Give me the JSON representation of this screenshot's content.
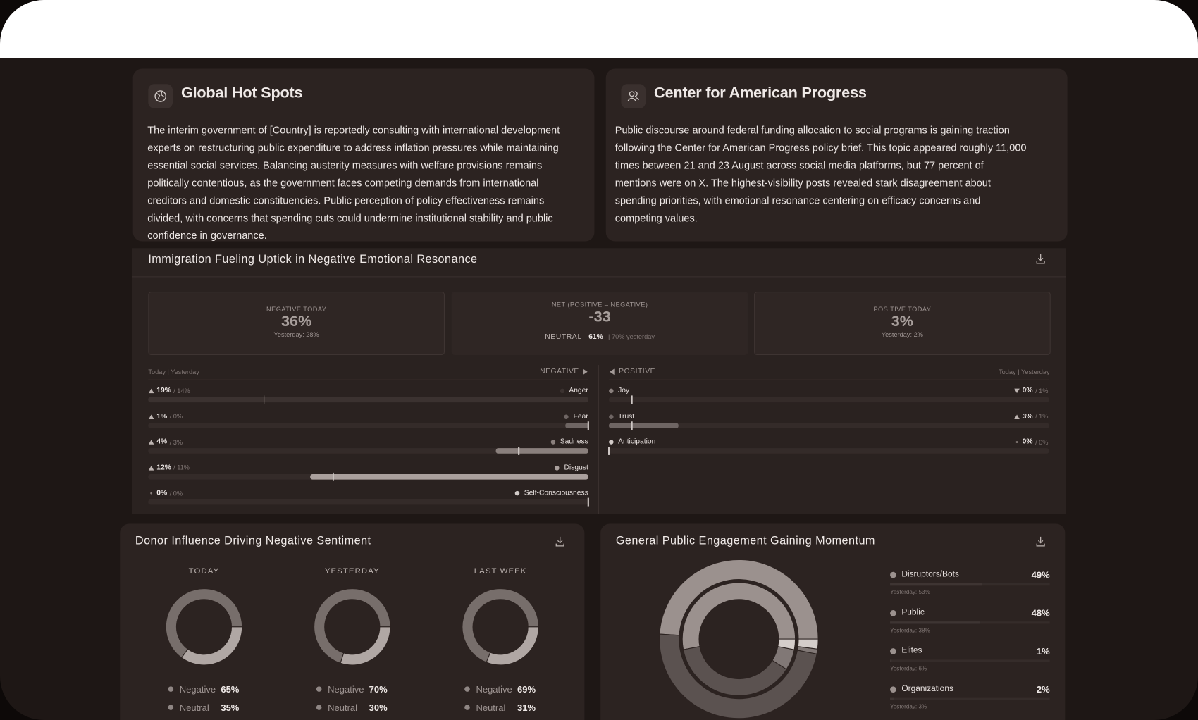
{
  "hot_spots": {
    "title": "Global Hot Spots",
    "body": "The interim government of [Country] is reportedly consulting with international development experts on restructuring public expenditure to address inflation pressures while maintaining essential social services. Balancing austerity measures with welfare provisions remains politically contentious, as the government faces competing demands from international creditors and domestic constituencies. Public perception of policy effectiveness remains divided, with concerns that spending cuts could undermine institutional stability and public confidence in governance."
  },
  "cap": {
    "title": "Center for American Progress",
    "body": "Public discourse around federal funding allocation to social programs is gaining traction following the Center for American Progress policy brief. This topic appeared roughly 11,000 times between 21 and 23 August across social media platforms, but 77 percent of mentions were on X. The highest-visibility posts revealed stark disagreement about spending priorities, with emotional resonance centering on efficacy concerns and competing values."
  },
  "emotion": {
    "title": "Immigration Fueling Uptick in Negative Emotional Resonance",
    "negative_today": {
      "label": "NEGATIVE TODAY",
      "value": "36%",
      "yesterday": "Yesterday: 28%"
    },
    "net": {
      "label": "NET (POSITIVE – NEGATIVE)",
      "value": "-33",
      "neutral_label": "NEUTRAL",
      "neutral_value": "61%",
      "neutral_yesterday": "| 70% yesterday"
    },
    "positive_today": {
      "label": "POSITIVE TODAY",
      "value": "3%",
      "yesterday": "Yesterday: 2%"
    },
    "negative_header": {
      "left": "Today | Yesterday",
      "right": "NEGATIVE"
    },
    "positive_header": {
      "left": "POSITIVE",
      "right": "Today | Yesterday"
    },
    "negative_rows": [
      {
        "name": "Anger",
        "today": 19,
        "today_label": "19%",
        "yesterday": 14,
        "yesterday_label": "/ 14%",
        "color": "#3b3230"
      },
      {
        "name": "Fear",
        "today": 1,
        "today_label": "1%",
        "yesterday": 0,
        "yesterday_label": "/ 0%",
        "color": "#6e6563"
      },
      {
        "name": "Sadness",
        "today": 4,
        "today_label": "4%",
        "yesterday": 3,
        "yesterday_label": "/ 3%",
        "color": "#8a807d"
      },
      {
        "name": "Disgust",
        "today": 12,
        "today_label": "12%",
        "yesterday": 11,
        "yesterday_label": "/ 11%",
        "color": "#aaa09d"
      },
      {
        "name": "Self-Consciousness",
        "today": 0,
        "today_label": "0%",
        "yesterday": 0,
        "yesterday_label": "/ 0%",
        "color": "#d2cbc8"
      }
    ],
    "positive_rows": [
      {
        "name": "Joy",
        "today": 0,
        "today_label": "0%",
        "yesterday": 1,
        "yesterday_label": "/ 1%",
        "color": "#8a807d"
      },
      {
        "name": "Trust",
        "today": 3,
        "today_label": "3%",
        "yesterday": 1,
        "yesterday_label": "/ 1%",
        "color": "#6e6563"
      },
      {
        "name": "Anticipation",
        "today": 0,
        "today_label": "0%",
        "yesterday": 0,
        "yesterday_label": "/ 0%",
        "color": "#d2cbc8"
      }
    ]
  },
  "donor": {
    "title": "Donor Influence Driving Negative Sentiment",
    "periods": [
      {
        "label": "TODAY",
        "segments": [
          {
            "name": "Negative",
            "value": 65,
            "label": "65%",
            "color": "#776e6b"
          },
          {
            "name": "Neutral",
            "value": 35,
            "label": "35%",
            "color": "#b0a7a4"
          }
        ]
      },
      {
        "label": "YESTERDAY",
        "segments": [
          {
            "name": "Negative",
            "value": 70,
            "label": "70%",
            "color": "#776e6b"
          },
          {
            "name": "Neutral",
            "value": 30,
            "label": "30%",
            "color": "#b0a7a4"
          }
        ]
      },
      {
        "label": "LAST WEEK",
        "segments": [
          {
            "name": "Negative",
            "value": 69,
            "label": "69%",
            "color": "#776e6b"
          },
          {
            "name": "Neutral",
            "value": 31,
            "label": "31%",
            "color": "#b0a7a4"
          }
        ]
      }
    ]
  },
  "engagement": {
    "title": "General Public Engagement Gaining Momentum",
    "items": [
      {
        "name": "Disruptors/Bots",
        "value": 49,
        "label": "49%",
        "yesterday": 53,
        "yesterday_label": "Yesterday: 53%",
        "color": "#9b918e"
      },
      {
        "name": "Public",
        "value": 48,
        "label": "48%",
        "yesterday": 38,
        "yesterday_label": "Yesterday: 38%",
        "color": "#5b5250"
      },
      {
        "name": "Elites",
        "value": 1,
        "label": "1%",
        "yesterday": 6,
        "yesterday_label": "Yesterday: 6%",
        "color": "#817876"
      },
      {
        "name": "Organizations",
        "value": 2,
        "label": "2%",
        "yesterday": 3,
        "yesterday_label": "Yesterday: 3%",
        "color": "#d4cdca"
      }
    ]
  }
}
